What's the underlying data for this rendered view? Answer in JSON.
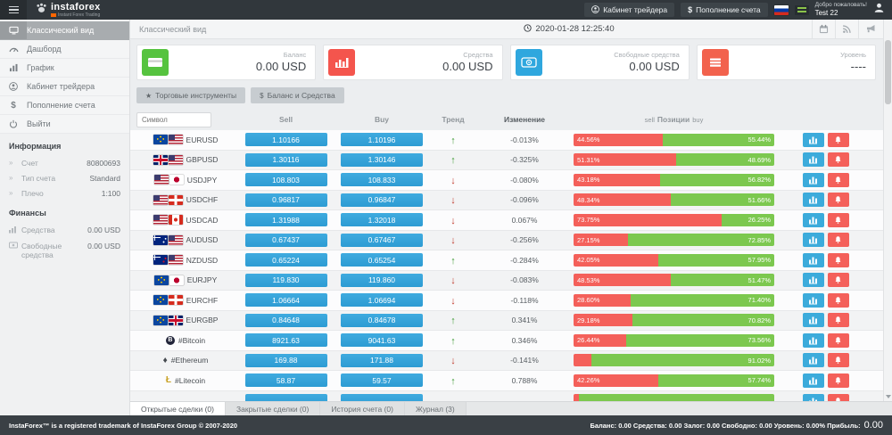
{
  "header": {
    "brand": "instaforex",
    "brand_subtitle": "Instant Forex Trading",
    "cabinet_button": "Кабинет трейдера",
    "deposit_icon": "$",
    "deposit_button": "Пополнение счета",
    "welcome_line1": "Добро пожаловать!",
    "welcome_line2": "Test 22"
  },
  "sidebar": {
    "items": [
      {
        "label": "Классический вид",
        "icon": "desktop-icon",
        "active": true
      },
      {
        "label": "Дашборд",
        "icon": "gauge-icon",
        "active": false
      },
      {
        "label": "График",
        "icon": "chart-icon",
        "active": false
      },
      {
        "label": "Кабинет трейдера",
        "icon": "user-icon",
        "active": false
      },
      {
        "label": "Пополнение счета",
        "icon": "dollar-icon",
        "active": false
      },
      {
        "label": "Выйти",
        "icon": "power-icon",
        "active": false
      }
    ],
    "info_title": "Информация",
    "info_rows": [
      {
        "label": "Счет",
        "value": "80800693"
      },
      {
        "label": "Тип счета",
        "value": "Standard"
      },
      {
        "label": "Плечо",
        "value": "1:100"
      }
    ],
    "finance_title": "Финансы",
    "finance_rows": [
      {
        "label": "Средства",
        "value": "0.00 USD",
        "icon": "bars-icon"
      },
      {
        "label": "Свободные средства",
        "value": "0.00 USD",
        "icon": "banknote-icon"
      }
    ]
  },
  "content_header": {
    "title": "Классический вид",
    "datetime": "2020-01-28 12:25:40"
  },
  "cards": [
    {
      "label": "Баланс",
      "value": "0.00 USD",
      "icon": "credit-card-icon",
      "color": "#56c33f"
    },
    {
      "label": "Средства",
      "value": "0.00 USD",
      "icon": "bar-chart-icon",
      "color": "#f4554d"
    },
    {
      "label": "Свободные средства",
      "value": "0.00 USD",
      "icon": "coin-icon",
      "color": "#2fa7de"
    },
    {
      "label": "Уровень",
      "value": "----",
      "icon": "menu-icon",
      "color": "#f2624d"
    }
  ],
  "toolbar": {
    "instruments_button": "Торговые инструменты",
    "balance_button": "Баланс и Средства"
  },
  "table": {
    "search_placeholder": "Символ",
    "col_sell": "Sell",
    "col_buy": "Buy",
    "col_trend": "Тренд",
    "col_change": "Изменение",
    "col_pos_sell": "sell",
    "col_positions": "Позиции",
    "col_pos_buy": "buy",
    "rows": [
      {
        "symbol": "EURUSD",
        "icons": [
          "flag-eu",
          "flag-us"
        ],
        "sell": "1.10166",
        "buy": "1.10196",
        "trend": "up",
        "change": "-0.013%",
        "pos_sell": "44.56%",
        "pos_buy": "55.44%"
      },
      {
        "symbol": "GBPUSD",
        "icons": [
          "flag-gb",
          "flag-us"
        ],
        "sell": "1.30116",
        "buy": "1.30146",
        "trend": "up",
        "change": "-0.325%",
        "pos_sell": "51.31%",
        "pos_buy": "48.69%"
      },
      {
        "symbol": "USDJPY",
        "icons": [
          "flag-us",
          "flag-jp"
        ],
        "sell": "108.803",
        "buy": "108.833",
        "trend": "down",
        "change": "-0.080%",
        "pos_sell": "43.18%",
        "pos_buy": "56.82%"
      },
      {
        "symbol": "USDCHF",
        "icons": [
          "flag-us",
          "flag-ch"
        ],
        "sell": "0.96817",
        "buy": "0.96847",
        "trend": "down",
        "change": "-0.096%",
        "pos_sell": "48.34%",
        "pos_buy": "51.66%"
      },
      {
        "symbol": "USDCAD",
        "icons": [
          "flag-us",
          "flag-ca"
        ],
        "sell": "1.31988",
        "buy": "1.32018",
        "trend": "down",
        "change": "0.067%",
        "pos_sell": "73.75%",
        "pos_buy": "26.25%"
      },
      {
        "symbol": "AUDUSD",
        "icons": [
          "flag-au",
          "flag-us"
        ],
        "sell": "0.67437",
        "buy": "0.67467",
        "trend": "down",
        "change": "-0.256%",
        "pos_sell": "27.15%",
        "pos_buy": "72.85%"
      },
      {
        "symbol": "NZDUSD",
        "icons": [
          "flag-nz",
          "flag-us"
        ],
        "sell": "0.65224",
        "buy": "0.65254",
        "trend": "up",
        "change": "-0.284%",
        "pos_sell": "42.05%",
        "pos_buy": "57.95%"
      },
      {
        "symbol": "EURJPY",
        "icons": [
          "flag-eu",
          "flag-jp"
        ],
        "sell": "119.830",
        "buy": "119.860",
        "trend": "down",
        "change": "-0.083%",
        "pos_sell": "48.53%",
        "pos_buy": "51.47%"
      },
      {
        "symbol": "EURCHF",
        "icons": [
          "flag-eu",
          "flag-ch"
        ],
        "sell": "1.06664",
        "buy": "1.06694",
        "trend": "down",
        "change": "-0.118%",
        "pos_sell": "28.60%",
        "pos_buy": "71.40%"
      },
      {
        "symbol": "EURGBP",
        "icons": [
          "flag-eu",
          "flag-gb"
        ],
        "sell": "0.84648",
        "buy": "0.84678",
        "trend": "up",
        "change": "0.341%",
        "pos_sell": "29.18%",
        "pos_buy": "70.82%"
      },
      {
        "symbol": "#Bitcoin",
        "icons": [
          "btc-icon"
        ],
        "sell": "8921.63",
        "buy": "9041.63",
        "trend": "up",
        "change": "0.346%",
        "pos_sell": "26.44%",
        "pos_buy": "73.56%"
      },
      {
        "symbol": "#Ethereum",
        "icons": [
          "eth-icon"
        ],
        "sell": "169.88",
        "buy": "171.88",
        "trend": "down",
        "change": "-0.141%",
        "pos_sell": "",
        "pos_buy": "91.02%"
      },
      {
        "symbol": "#Litecoin",
        "icons": [
          "ltc-icon"
        ],
        "sell": "58.87",
        "buy": "59.57",
        "trend": "up",
        "change": "0.788%",
        "pos_sell": "42.26%",
        "pos_buy": "57.74%"
      }
    ],
    "partial_row": {
      "pos_sell": "",
      "pos_buy": "",
      "sell_pct": 2.5
    }
  },
  "tabs": [
    {
      "label": "Открытые сделки (0)",
      "active": true
    },
    {
      "label": "Закрытые сделки (0)",
      "active": false
    },
    {
      "label": "История счета (0)",
      "active": false
    },
    {
      "label": "Журнал (3)",
      "active": false
    }
  ],
  "footer": {
    "copyright": "InstaForex™ is a registered trademark of InstaForex Group © 2007-2020",
    "summary": "Баланс: 0.00 Средства: 0.00 Залог: 0.00 Свободно: 0.00 Уровень: 0.00% Прибыль:",
    "profit": "0.00"
  },
  "colors": {
    "accent_blue": "#35a4da",
    "bar_sell_red": "#f4605a",
    "bar_buy_green": "#7cc84f",
    "trend_up": "#3f9b35",
    "trend_down": "#c0392b",
    "header_dark": "#31373c",
    "footer_dark": "#3a4045"
  }
}
